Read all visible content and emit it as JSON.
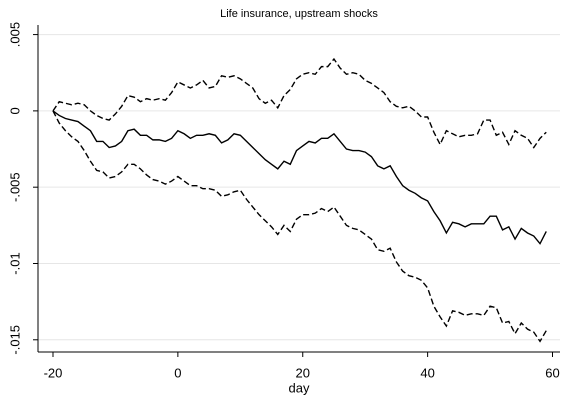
{
  "chart_data": {
    "type": "line",
    "title": "Life insurance, upstream shocks",
    "xlabel": "day",
    "x": [
      -20,
      -19,
      -18,
      -17,
      -16,
      -15,
      -14,
      -13,
      -12,
      -11,
      -10,
      -9,
      -8,
      -7,
      -6,
      -5,
      -4,
      -3,
      -2,
      -1,
      0,
      1,
      2,
      3,
      4,
      5,
      6,
      7,
      8,
      9,
      10,
      11,
      12,
      13,
      14,
      15,
      16,
      17,
      18,
      19,
      20,
      21,
      22,
      23,
      24,
      25,
      26,
      27,
      28,
      29,
      30,
      31,
      32,
      33,
      34,
      35,
      36,
      37,
      38,
      39,
      40,
      41,
      42,
      43,
      44,
      45,
      46,
      47,
      48,
      49,
      50,
      51,
      52,
      53,
      54,
      55,
      56,
      57,
      58,
      59
    ],
    "series": [
      {
        "color": "#000000",
        "style": "solid",
        "values": [
          0,
          -0.0003,
          -0.0005,
          -0.0006,
          -0.0007,
          -0.001,
          -0.0013,
          -0.002,
          -0.002,
          -0.0024,
          -0.0023,
          -0.002,
          -0.0013,
          -0.0012,
          -0.0016,
          -0.0016,
          -0.0019,
          -0.0019,
          -0.002,
          -0.0018,
          -0.0013,
          -0.0015,
          -0.0018,
          -0.0016,
          -0.0016,
          -0.0015,
          -0.0016,
          -0.0021,
          -0.0019,
          -0.0015,
          -0.0016,
          -0.002,
          -0.0024,
          -0.0028,
          -0.0032,
          -0.0035,
          -0.0038,
          -0.0033,
          -0.0035,
          -0.0026,
          -0.0023,
          -0.002,
          -0.0021,
          -0.0018,
          -0.0018,
          -0.0015,
          -0.002,
          -0.0025,
          -0.0026,
          -0.0026,
          -0.0027,
          -0.003,
          -0.0036,
          -0.0038,
          -0.0036,
          -0.0043,
          -0.0049,
          -0.0052,
          -0.0054,
          -0.0057,
          -0.0059,
          -0.0066,
          -0.0072,
          -0.008,
          -0.0073,
          -0.0074,
          -0.0076,
          -0.0074,
          -0.0074,
          -0.0074,
          -0.0069,
          -0.0069,
          -0.0078,
          -0.0076,
          -0.0084,
          -0.0077,
          -0.008,
          -0.0082,
          -0.0087,
          -0.0079
        ]
      },
      {
        "color": "#000000",
        "style": "dashed",
        "values": [
          0,
          0.0006,
          0.0005,
          0.0004,
          0.0005,
          0.0004,
          0,
          -0.0003,
          -0.0005,
          -0.0006,
          -0.0002,
          0.0003,
          0.001,
          0.0009,
          0.0006,
          0.0008,
          0.0007,
          0.0008,
          0.0007,
          0.0012,
          0.0019,
          0.0017,
          0.0015,
          0.0017,
          0.002,
          0.0015,
          0.0016,
          0.0023,
          0.0022,
          0.0023,
          0.0021,
          0.0018,
          0.0015,
          0.0008,
          0.0005,
          0.0007,
          0.0002,
          0.001,
          0.0014,
          0.0021,
          0.0024,
          0.0025,
          0.0024,
          0.0029,
          0.0029,
          0.0034,
          0.0028,
          0.0024,
          0.0025,
          0.0024,
          0.002,
          0.0018,
          0.0015,
          0.0012,
          0.0006,
          0.0003,
          0.0002,
          0.0003,
          0,
          -0.0004,
          -0.0004,
          -0.0014,
          -0.0022,
          -0.0013,
          -0.0015,
          -0.0017,
          -0.0016,
          -0.0016,
          -0.0015,
          -0.0006,
          -0.0006,
          -0.0016,
          -0.0014,
          -0.0022,
          -0.0013,
          -0.0016,
          -0.0018,
          -0.0024,
          -0.0018,
          -0.0014
        ]
      },
      {
        "color": "#000000",
        "style": "dashed",
        "values": [
          0,
          -0.0008,
          -0.0013,
          -0.0017,
          -0.002,
          -0.0026,
          -0.0033,
          -0.0039,
          -0.004,
          -0.0044,
          -0.0043,
          -0.004,
          -0.0035,
          -0.0035,
          -0.0038,
          -0.0042,
          -0.0045,
          -0.0046,
          -0.0048,
          -0.0046,
          -0.0043,
          -0.0046,
          -0.0049,
          -0.0049,
          -0.0051,
          -0.0051,
          -0.0052,
          -0.0056,
          -0.0055,
          -0.0053,
          -0.0052,
          -0.0058,
          -0.0063,
          -0.0068,
          -0.0072,
          -0.0076,
          -0.0081,
          -0.0075,
          -0.0079,
          -0.0071,
          -0.0068,
          -0.0068,
          -0.0067,
          -0.0064,
          -0.0066,
          -0.0063,
          -0.0069,
          -0.0075,
          -0.0077,
          -0.0078,
          -0.0081,
          -0.0084,
          -0.0091,
          -0.0092,
          -0.009,
          -0.0099,
          -0.0105,
          -0.0108,
          -0.0109,
          -0.0111,
          -0.0116,
          -0.0128,
          -0.0135,
          -0.0141,
          -0.0131,
          -0.0132,
          -0.0134,
          -0.0133,
          -0.0133,
          -0.0134,
          -0.0128,
          -0.0129,
          -0.0139,
          -0.0138,
          -0.0146,
          -0.0139,
          -0.0143,
          -0.0145,
          -0.0151,
          -0.0144
        ]
      }
    ],
    "xlim": [
      -22.4,
      61.2
    ],
    "ylim": [
      -0.0158,
      0.0053
    ],
    "xticks": [
      -20,
      0,
      20,
      40,
      60
    ],
    "yticks": [
      {
        "value": 0.005,
        "label": ".005"
      },
      {
        "value": 0,
        "label": "0"
      },
      {
        "value": -0.005,
        "label": "-.005"
      },
      {
        "value": -0.01,
        "label": "-.01"
      },
      {
        "value": -0.015,
        "label": "-.015"
      }
    ],
    "grid": true
  }
}
